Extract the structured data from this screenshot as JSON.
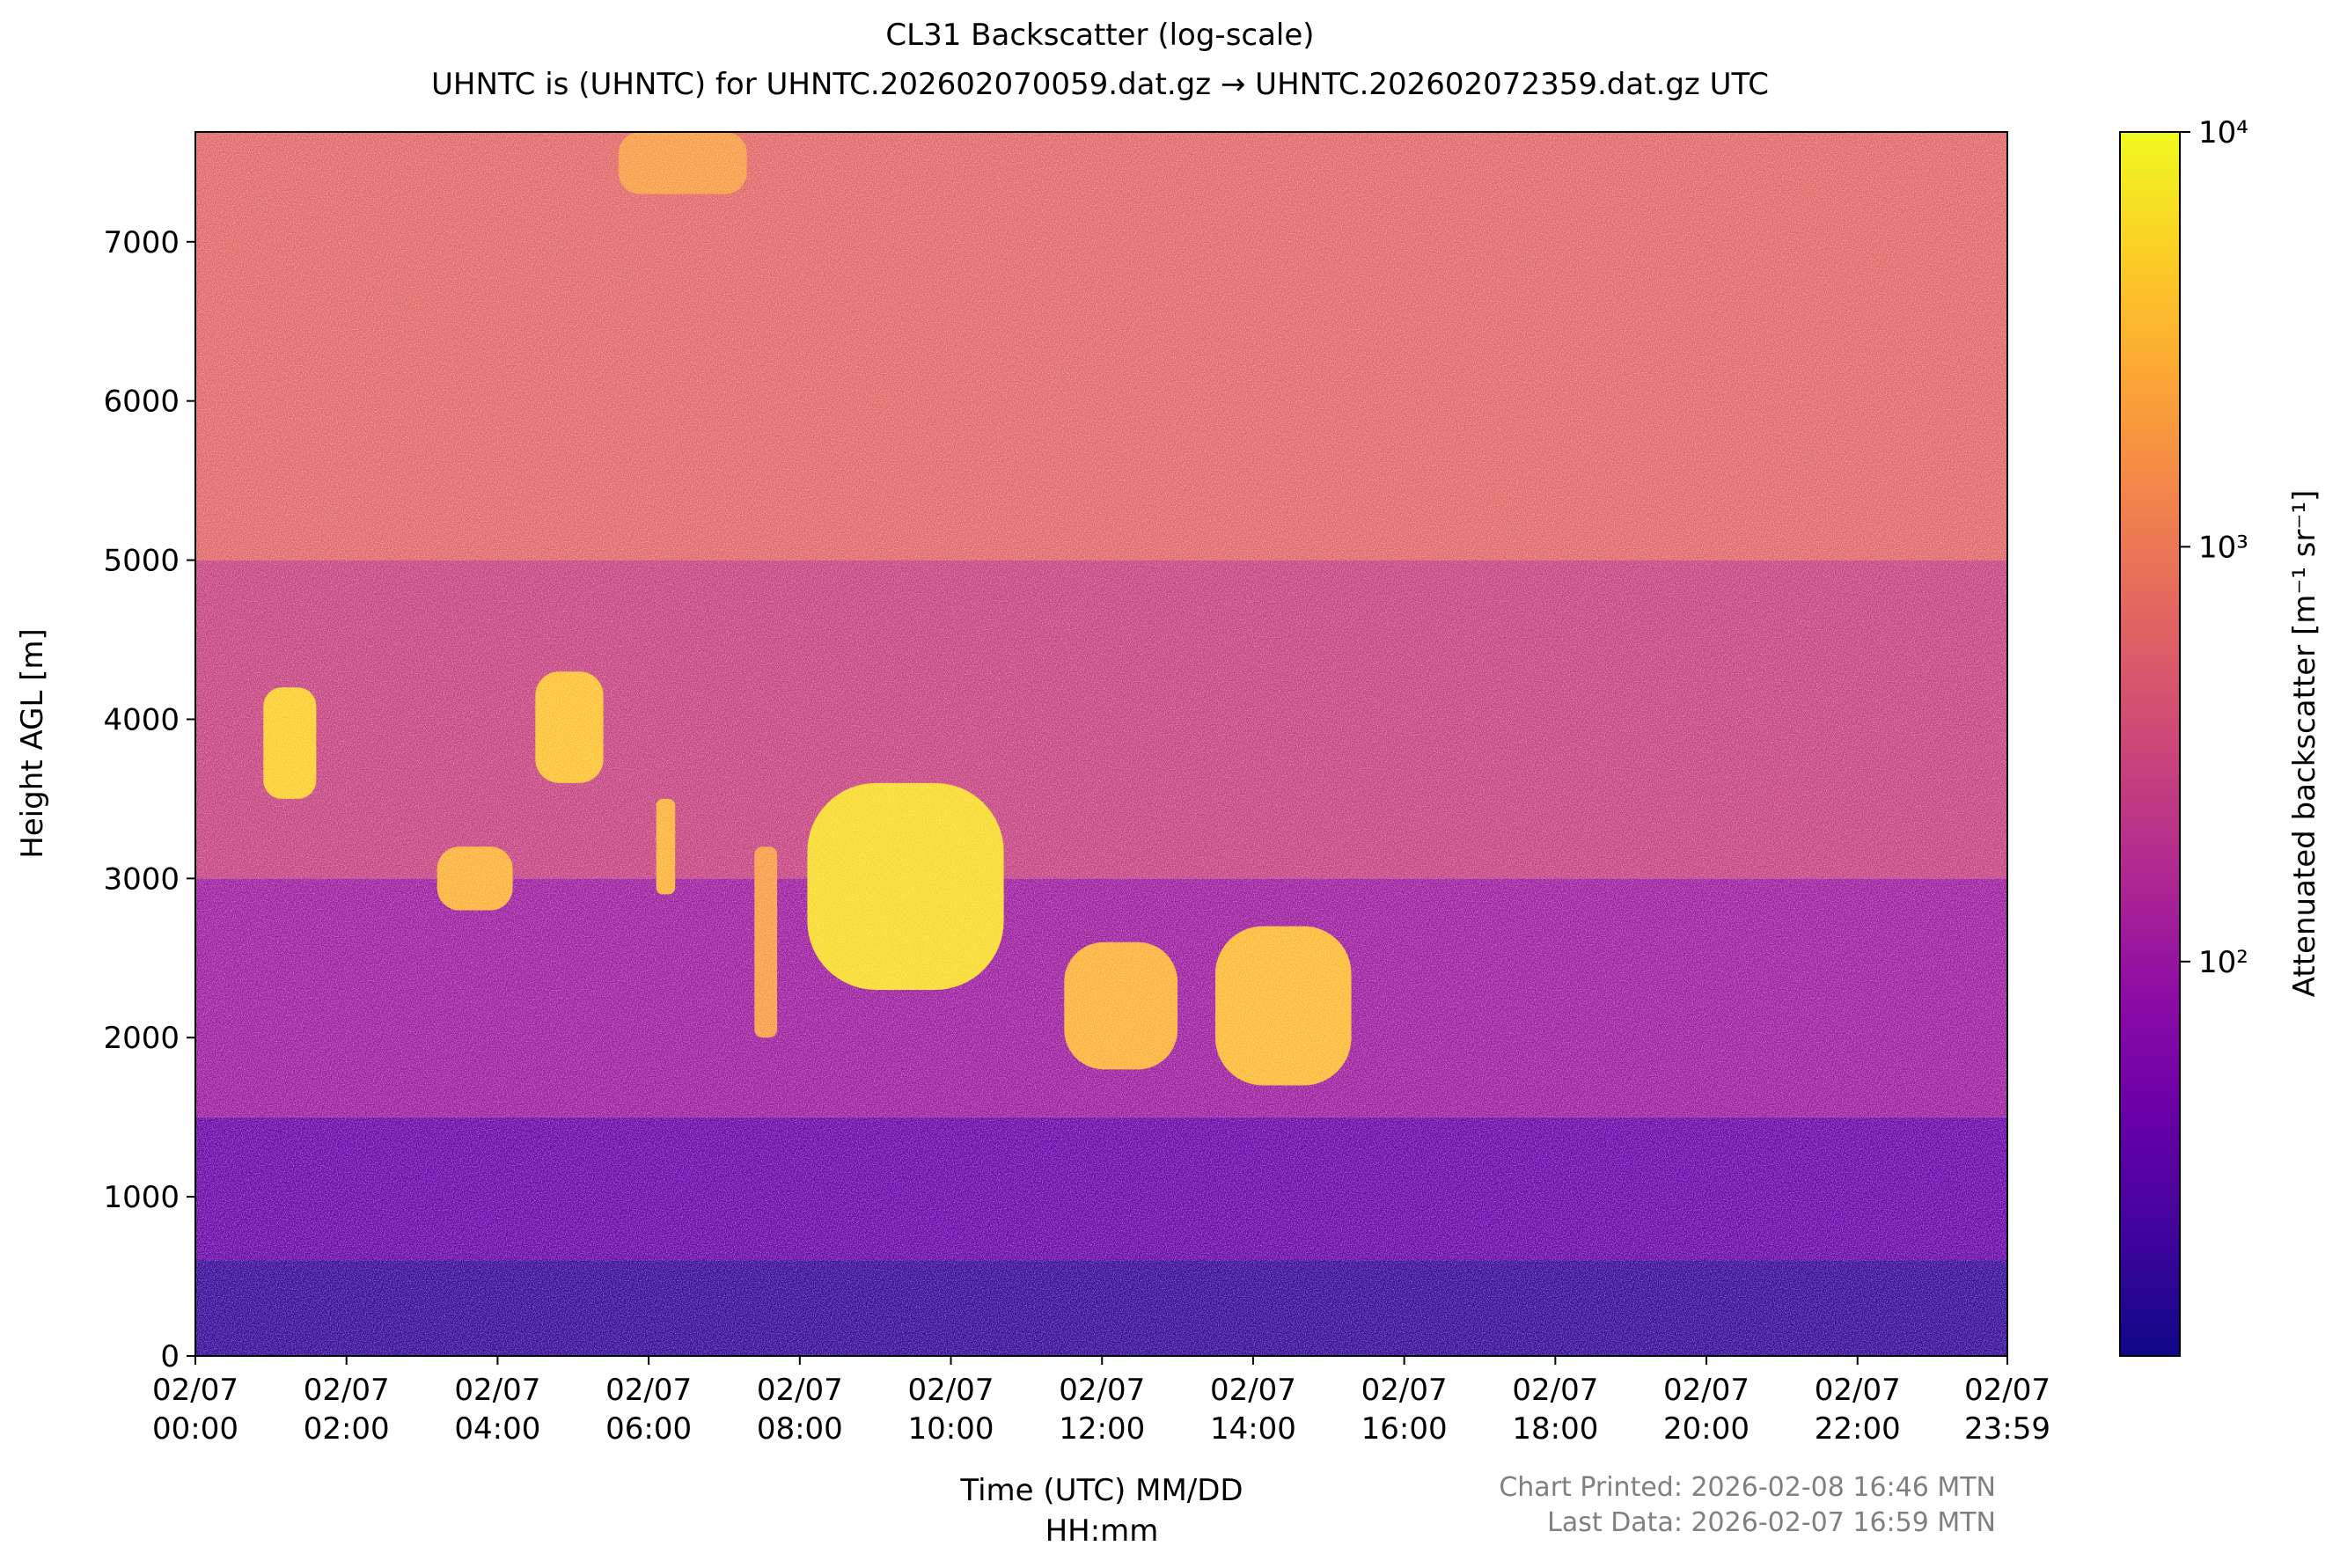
{
  "chart_data": {
    "type": "heatmap",
    "title": [
      "CL31 Backscatter (log-scale)",
      "UHNTC is (UHNTC) for UHNTC.202602070059.dat.gz → UHNTC.202602072359.dat.gz UTC"
    ],
    "xlabel": [
      "Time (UTC) MM/DD",
      "HH:mm"
    ],
    "ylabel": "Height AGL [m]",
    "xlim": [
      0,
      23.983
    ],
    "xticks": [
      {
        "value": 0,
        "label": [
          "02/07",
          "00:00"
        ]
      },
      {
        "value": 2,
        "label": [
          "02/07",
          "02:00"
        ]
      },
      {
        "value": 4,
        "label": [
          "02/07",
          "04:00"
        ]
      },
      {
        "value": 6,
        "label": [
          "02/07",
          "06:00"
        ]
      },
      {
        "value": 8,
        "label": [
          "02/07",
          "08:00"
        ]
      },
      {
        "value": 10,
        "label": [
          "02/07",
          "10:00"
        ]
      },
      {
        "value": 12,
        "label": [
          "02/07",
          "12:00"
        ]
      },
      {
        "value": 14,
        "label": [
          "02/07",
          "14:00"
        ]
      },
      {
        "value": 16,
        "label": [
          "02/07",
          "16:00"
        ]
      },
      {
        "value": 18,
        "label": [
          "02/07",
          "18:00"
        ]
      },
      {
        "value": 20,
        "label": [
          "02/07",
          "20:00"
        ]
      },
      {
        "value": 22,
        "label": [
          "02/07",
          "22:00"
        ]
      },
      {
        "value": 23.983,
        "label": [
          "02/07",
          "23:59"
        ]
      }
    ],
    "ylim": [
      0,
      7690
    ],
    "yticks": [
      0,
      1000,
      2000,
      3000,
      4000,
      5000,
      6000,
      7000
    ],
    "colormap": "plasma",
    "colorbar": {
      "label": "Attenuated backscatter [m⁻¹ sr⁻¹]",
      "log_scale": true,
      "lim": [
        11.2,
        10000
      ],
      "ticks": [
        {
          "value": 100,
          "label": "10²"
        },
        {
          "value": 1000,
          "label": "10³"
        },
        {
          "value": 10000,
          "label": "10⁴"
        }
      ]
    },
    "cells": [
      {
        "x": [
          0,
          23.983
        ],
        "y": [
          0,
          600
        ],
        "value": 18
      },
      {
        "x": [
          0,
          23.983
        ],
        "y": [
          600,
          1500
        ],
        "value": 40
      },
      {
        "x": [
          0,
          23.983
        ],
        "y": [
          1500,
          3000
        ],
        "value": 110
      },
      {
        "x": [
          0,
          23.983
        ],
        "y": [
          3000,
          5000
        ],
        "value": 280
      },
      {
        "x": [
          0,
          23.983
        ],
        "y": [
          5000,
          7690
        ],
        "value": 650
      },
      {
        "x": [
          0.9,
          1.6
        ],
        "y": [
          3500,
          4200
        ],
        "value": 5000
      },
      {
        "x": [
          3.2,
          4.2
        ],
        "y": [
          2800,
          3200
        ],
        "value": 3000
      },
      {
        "x": [
          4.5,
          5.4
        ],
        "y": [
          3600,
          4300
        ],
        "value": 4000
      },
      {
        "x": [
          6.1,
          6.35
        ],
        "y": [
          2900,
          3500
        ],
        "value": 3000
      },
      {
        "x": [
          7.4,
          7.7
        ],
        "y": [
          2000,
          3200
        ],
        "value": 2000
      },
      {
        "x": [
          8.1,
          10.7
        ],
        "y": [
          2300,
          3600
        ],
        "value": 6000
      },
      {
        "x": [
          11.5,
          13.0
        ],
        "y": [
          1800,
          2600
        ],
        "value": 3000
      },
      {
        "x": [
          13.5,
          15.3
        ],
        "y": [
          1700,
          2700
        ],
        "value": 3500
      },
      {
        "x": [
          5.6,
          7.3
        ],
        "y": [
          7300,
          7690
        ],
        "value": 2000
      }
    ],
    "footer": [
      "Chart Printed: 2026-02-08 16:46 MTN",
      "Last Data: 2026-02-07 16:59 MTN"
    ]
  }
}
